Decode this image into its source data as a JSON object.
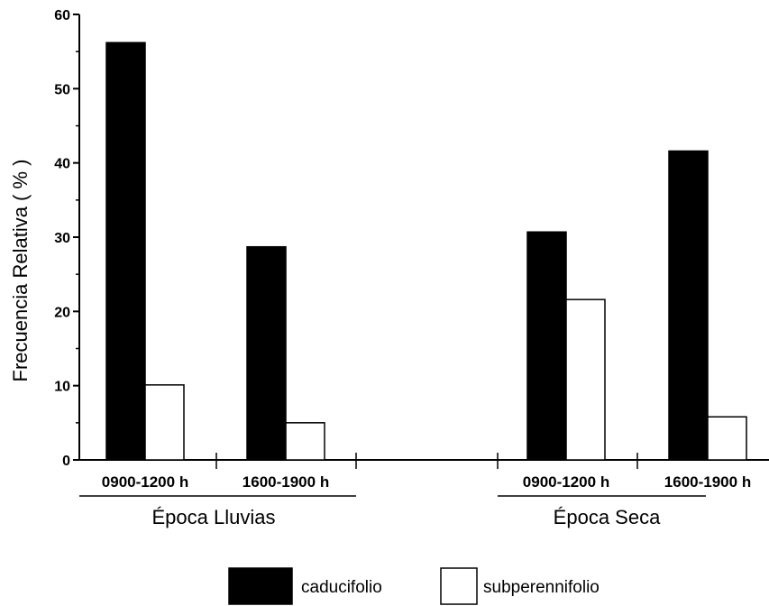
{
  "chart_data": {
    "type": "bar",
    "title": "",
    "ylabel": "Frecuencia Relativa ( % )",
    "xlabel": "",
    "ylim": [
      0,
      60
    ],
    "yticks": [
      "0",
      "10",
      "20",
      "30",
      "40",
      "50",
      "60"
    ],
    "categories": [
      "0900-1200 h",
      "1600-1900 h",
      "0900-1200 h",
      "1600-1900 h"
    ],
    "groups": [
      {
        "label": "Época  Lluvias",
        "categories": [
          0,
          1
        ]
      },
      {
        "label": "Época Seca",
        "categories": [
          2,
          3
        ]
      }
    ],
    "series": [
      {
        "name": "caducifolio",
        "color": "#000000",
        "values": [
          56.2,
          28.7,
          30.7,
          41.6
        ]
      },
      {
        "name": "subperennifolio",
        "color": "#ffffff",
        "values": [
          10.1,
          5.0,
          21.6,
          5.8
        ]
      }
    ],
    "legend": "bottom",
    "grid": false
  }
}
